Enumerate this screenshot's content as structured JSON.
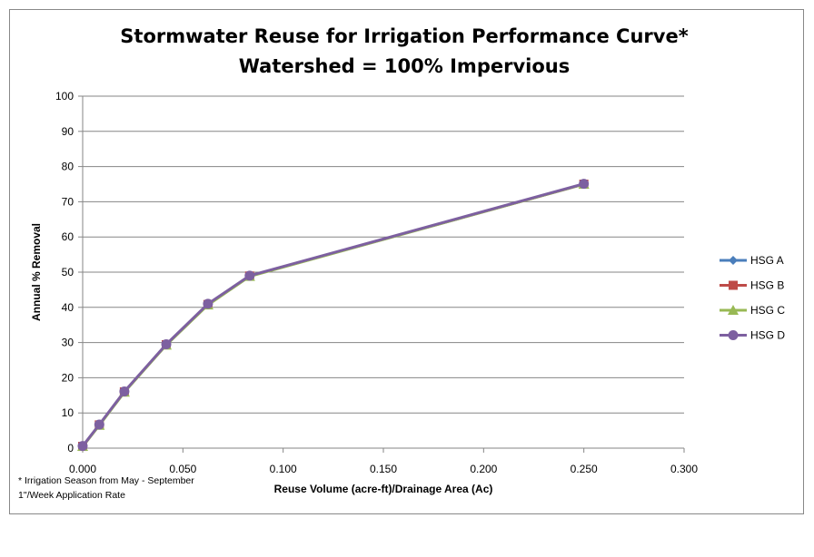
{
  "chart_data": {
    "type": "line",
    "title": "Stormwater Reuse for Irrigation Performance Curve*",
    "subtitle": "Watershed = 100% Impervious",
    "xlabel": "Reuse Volume (acre-ft)/Drainage Area (Ac)",
    "ylabel": "Annual % Removal",
    "xlim": [
      0,
      0.3
    ],
    "ylim": [
      0,
      100
    ],
    "xticks": [
      "0.000",
      "0.050",
      "0.100",
      "0.150",
      "0.200",
      "0.250",
      "0.300"
    ],
    "yticks": [
      "0",
      "10",
      "20",
      "30",
      "40",
      "50",
      "60",
      "70",
      "80",
      "90",
      "100"
    ],
    "grid": "horizontal",
    "legend_position": "right",
    "notes": [
      "* Irrigation Season from May - September",
      "1\"/Week Application Rate"
    ],
    "x": [
      0,
      0.0083,
      0.0208,
      0.0417,
      0.0625,
      0.0833,
      0.25
    ],
    "series": [
      {
        "name": "HSG A",
        "color": "#4a7ebb",
        "marker": "diamond",
        "values": [
          0.5,
          6.6,
          16,
          29.4,
          40.8,
          48.9,
          75
        ]
      },
      {
        "name": "HSG B",
        "color": "#be4b48",
        "marker": "square",
        "values": [
          0.5,
          6.6,
          16,
          29.4,
          40.8,
          48.9,
          75
        ]
      },
      {
        "name": "HSG C",
        "color": "#98b954",
        "marker": "triangle",
        "values": [
          0.5,
          6.5,
          15.9,
          29.3,
          40.7,
          48.8,
          75
        ]
      },
      {
        "name": "HSG D",
        "color": "#7d60a0",
        "marker": "circle",
        "values": [
          0.6,
          6.7,
          16.1,
          29.5,
          41,
          49,
          75.1
        ]
      }
    ]
  }
}
